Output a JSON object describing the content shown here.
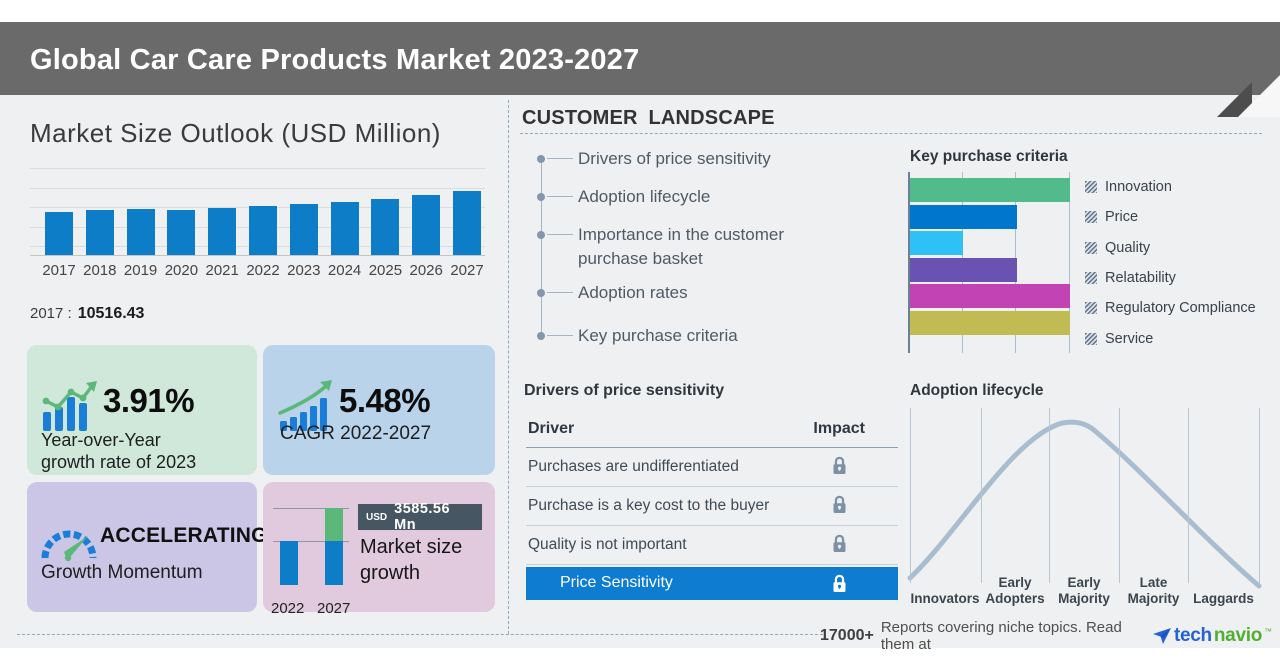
{
  "header": {
    "title": "Global Car Care Products Market 2023-2027"
  },
  "market_outlook": {
    "title": "Market Size Outlook (USD Million)",
    "note_year": "2017 :",
    "note_value": "10516.43"
  },
  "cards": {
    "yoy": {
      "value": "3.91%",
      "line1": "Year-over-Year",
      "line2": "growth rate of 2023"
    },
    "cagr": {
      "value": "5.48%",
      "label": "CAGR 2022-2027"
    },
    "momentum": {
      "value": "ACCELERATING",
      "label": "Growth Momentum"
    },
    "growth": {
      "badge_currency": "USD",
      "badge_value": "3585.56 Mn",
      "line1": "Market size",
      "line2": "growth",
      "year_start": "2022",
      "year_end": "2027"
    }
  },
  "customer_landscape": {
    "title": "CUSTOMER LANDSCAPE",
    "items": [
      "Drivers of price sensitivity",
      "Adoption lifecycle",
      "Importance in the customer purchase basket",
      "Adoption rates",
      "Key purchase criteria"
    ]
  },
  "drivers_table": {
    "title": "Drivers of price sensitivity",
    "col_driver": "Driver",
    "col_impact": "Impact",
    "rows": [
      "Purchases are undifferentiated",
      "Purchase is a key cost to the buyer",
      "Quality is not important"
    ],
    "highlight": "Price Sensitivity"
  },
  "footer": {
    "count": "17000+",
    "text": "Reports covering niche topics. Read them at",
    "brand_tech": "tech",
    "brand_navio": "navio",
    "tm": "™"
  },
  "icons": [
    "bar-growth-icon",
    "cagr-trend-icon",
    "speedometer-icon",
    "lock-icon",
    "legend-hatch-swatch-icon",
    "technavio-plane-icon"
  ],
  "colors": {
    "header_bg": "#6a6a6a",
    "body_bg": "#eff0f1",
    "primary_blue": "#0e7dc8",
    "highlight_row": "#0e7cd1",
    "green_card": "#cfe8da",
    "blue_card": "#b8d3ea",
    "purple_card": "#ccc6e6",
    "pink_card": "#e2cade",
    "badge_bg": "#475663",
    "curve": "#a9bdd1",
    "logo_blue": "#2563d4",
    "logo_green": "#52ae32"
  },
  "chart_data": [
    {
      "type": "bar",
      "title": "Market Size Outlook (USD Million)",
      "unit": "USD Million",
      "categories": [
        "2017",
        "2018",
        "2019",
        "2020",
        "2021",
        "2022",
        "2023",
        "2024",
        "2025",
        "2026",
        "2027"
      ],
      "values": [
        10516.43,
        11080,
        11330,
        11080,
        11480,
        11891,
        12356,
        12870,
        13600,
        14500,
        15477
      ],
      "labeled_points": {
        "2017": 10516.43
      },
      "bar_color": "#0e7dc8",
      "gridlines": true,
      "baseline_truncated": true
    },
    {
      "type": "bar",
      "orientation": "horizontal",
      "title": "Key purchase criteria",
      "categories": [
        "Innovation",
        "Price",
        "Quality",
        "Relatability",
        "Regulatory Compliance",
        "Service"
      ],
      "values": [
        3,
        2,
        1,
        2,
        3,
        3
      ],
      "xlim": [
        0,
        3
      ],
      "colors": [
        "#52bb8b",
        "#0077cc",
        "#2fc1f5",
        "#6a52b3",
        "#c243b4",
        "#c0bb52"
      ],
      "legend_position": "right"
    },
    {
      "type": "line",
      "title": "Adoption lifecycle",
      "shape": "bell-curve",
      "categories": [
        "Innovators",
        "Early Adopters",
        "Early Majority",
        "Late Majority",
        "Laggards"
      ],
      "line_color": "#a9bdd1"
    },
    {
      "type": "bar",
      "title": "Market size growth",
      "categories": [
        "2022",
        "2027"
      ],
      "values": [
        11891,
        15477
      ],
      "growth_label": "USD 3585.56 Mn",
      "colors": {
        "base": "#0e7dc8",
        "growth": "#5cb87a"
      }
    }
  ]
}
